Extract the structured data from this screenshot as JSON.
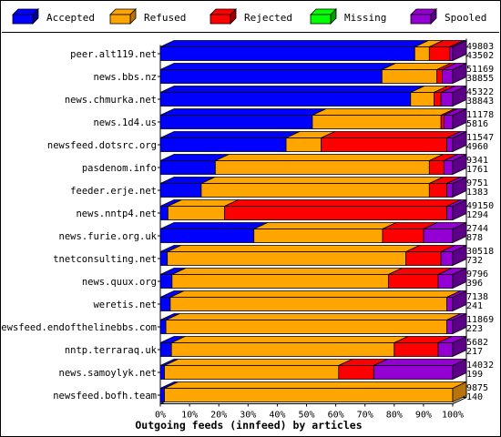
{
  "chart_data": {
    "type": "bar",
    "orientation": "horizontal",
    "stacked": true,
    "three_d": true,
    "xlabel": "Outgoing feeds (innfeed) by articles",
    "xlim": [
      0,
      100
    ],
    "x_unit": "%",
    "x_ticks": [
      "0%",
      "10%",
      "20%",
      "30%",
      "40%",
      "50%",
      "60%",
      "70%",
      "80%",
      "90%",
      "100%"
    ],
    "legend_position": "top",
    "series": [
      {
        "name": "Accepted",
        "color": "#0000ff",
        "side": "#00008b"
      },
      {
        "name": "Refused",
        "color": "#ffa500",
        "side": "#b8740a"
      },
      {
        "name": "Rejected",
        "color": "#ff0000",
        "side": "#a00000"
      },
      {
        "name": "Missing",
        "color": "#00ff00",
        "side": "#00a000"
      },
      {
        "name": "Spooled",
        "color": "#9400d3",
        "side": "#5c0087"
      }
    ],
    "categories": [
      "peer.alt119.net",
      "news.bbs.nz",
      "news.chmurka.net",
      "news.1d4.us",
      "newsfeed.dotsrc.org",
      "pasdenom.info",
      "feeder.erje.net",
      "news.nntp4.net",
      "news.furie.org.uk",
      "tnetconsulting.net",
      "news.quux.org",
      "weretis.net",
      "newsfeed.endofthelinebbs.com",
      "nntp.terraraq.uk",
      "news.samoylyk.net",
      "newsfeed.bofh.team"
    ],
    "offered": [
      "49803",
      "51169",
      "45322",
      "11178",
      "11547",
      "9341",
      "9751",
      "49150",
      "2744",
      "30518",
      "9796",
      "7138",
      "11869",
      "5682",
      "14032",
      "9875"
    ],
    "accepted": [
      "43502",
      "38855",
      "38843",
      "5816",
      "4960",
      "1761",
      "1383",
      "1294",
      "878",
      "732",
      "396",
      "241",
      "223",
      "217",
      "199",
      "140"
    ],
    "percentages": [
      [
        87.0,
        5.0,
        7.0,
        0,
        1.0
      ],
      [
        75.8,
        18.8,
        1.8,
        0,
        3.6
      ],
      [
        85.6,
        8.0,
        2.4,
        0,
        4.0
      ],
      [
        52.0,
        44.0,
        1.0,
        0,
        3.0
      ],
      [
        43.0,
        12.0,
        43.0,
        0,
        2.0
      ],
      [
        18.8,
        73.2,
        5.0,
        0,
        3.0
      ],
      [
        14.0,
        78.0,
        6.0,
        0,
        2.0
      ],
      [
        2.6,
        19.4,
        76.0,
        0,
        2.0
      ],
      [
        32.0,
        44.0,
        14.0,
        0,
        10.0
      ],
      [
        2.4,
        81.6,
        12.0,
        0,
        4.0
      ],
      [
        4.0,
        74.0,
        17.0,
        0,
        5.0
      ],
      [
        3.4,
        94.6,
        0,
        0,
        2.0
      ],
      [
        1.9,
        96.1,
        0,
        0,
        2.0
      ],
      [
        3.8,
        76.2,
        15.0,
        0,
        5.0
      ],
      [
        1.4,
        59.6,
        12.0,
        0,
        27.0
      ],
      [
        1.4,
        98.6,
        0,
        0,
        0
      ]
    ]
  }
}
